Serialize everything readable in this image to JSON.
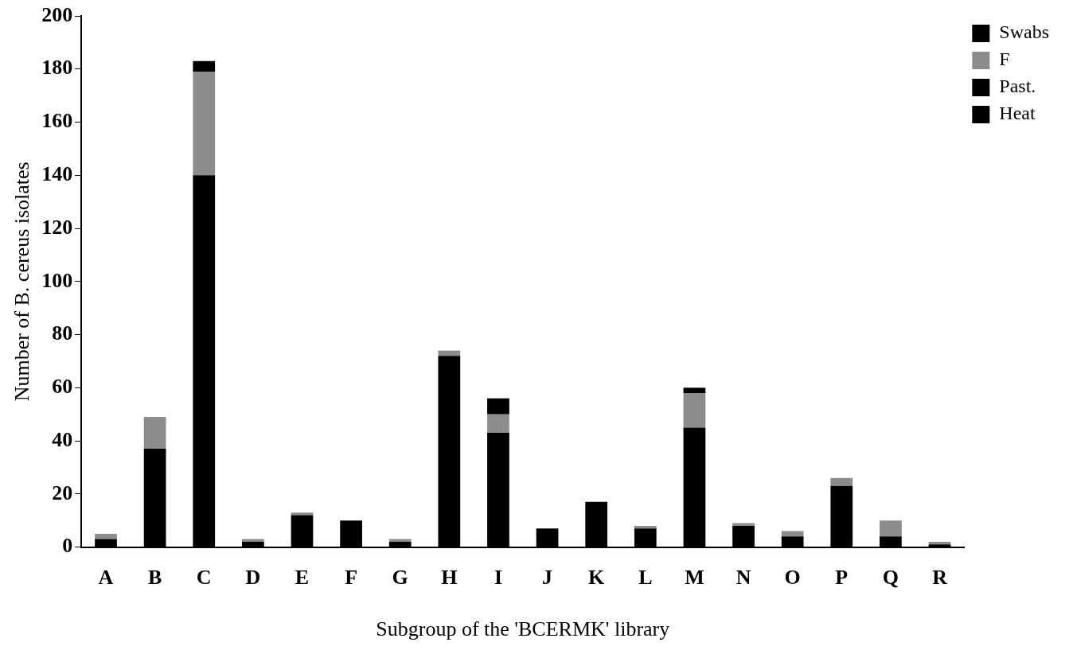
{
  "chart_data": {
    "type": "bar",
    "stacked": true,
    "xlabel": "Subgroup of the 'BCERMK' library",
    "ylabel": "Number of B. cereus isolates",
    "categories": [
      "A",
      "B",
      "C",
      "D",
      "E",
      "F",
      "G",
      "H",
      "I",
      "J",
      "K",
      "L",
      "M",
      "N",
      "O",
      "P",
      "Q",
      "R"
    ],
    "series": [
      {
        "name": "Heat",
        "color": "#000000",
        "values": [
          3,
          37,
          140,
          2,
          12,
          10,
          2,
          72,
          43,
          7,
          17,
          7,
          45,
          8,
          4,
          23,
          4,
          1
        ]
      },
      {
        "name": "Past.",
        "color": "#000000",
        "values": [
          0,
          0,
          0,
          0,
          0,
          0,
          0,
          0,
          0,
          0,
          0,
          0,
          0,
          0,
          0,
          0,
          0,
          0
        ]
      },
      {
        "name": "F",
        "color": "#8c8c8c",
        "values": [
          2,
          12,
          39,
          1,
          1,
          0,
          1,
          2,
          7,
          0,
          0,
          1,
          13,
          1,
          2,
          3,
          6,
          1
        ]
      },
      {
        "name": "Swabs",
        "color": "#000000",
        "values": [
          0,
          0,
          4,
          0,
          0,
          0,
          0,
          0,
          6,
          0,
          0,
          0,
          2,
          0,
          0,
          0,
          0,
          0
        ]
      }
    ],
    "ylim": [
      0,
      200
    ],
    "yticks": [
      0,
      20,
      40,
      60,
      80,
      100,
      120,
      140,
      160,
      180,
      200
    ],
    "grid": false,
    "legend": "top right"
  }
}
